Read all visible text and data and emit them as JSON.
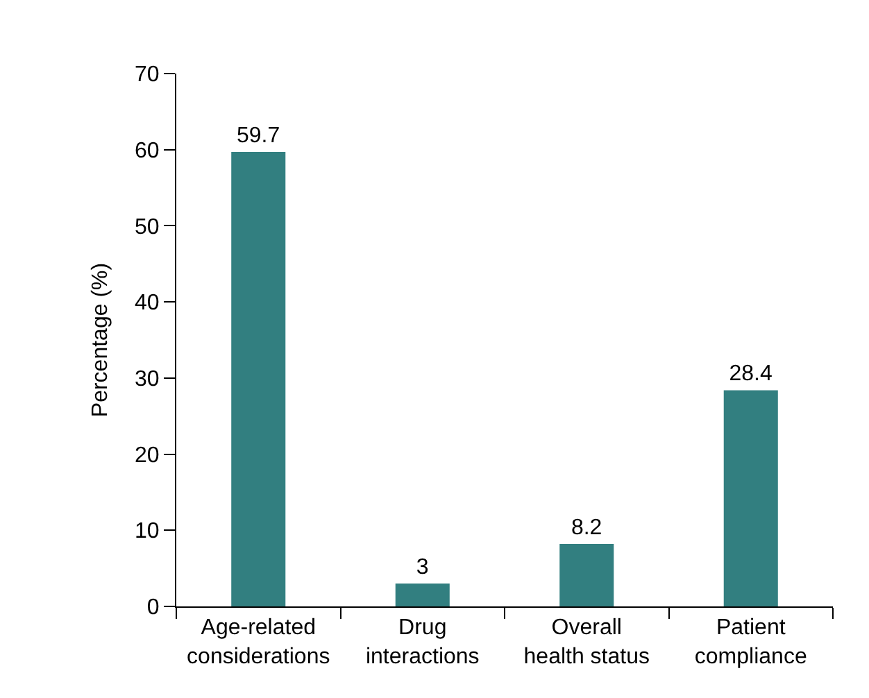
{
  "chart_data": {
    "type": "bar",
    "ylabel": "Percentage (%)",
    "categories": [
      "Age-related\nconsiderations",
      "Drug\ninteractions",
      "Overall\nhealth status",
      "Patient\ncompliance"
    ],
    "values": [
      59.7,
      3,
      8.2,
      28.4
    ],
    "color": "#327f80",
    "data_labels": true,
    "ylim": [
      0,
      70
    ],
    "yticks": [
      0,
      10,
      20,
      30,
      40,
      50,
      60,
      70
    ]
  }
}
